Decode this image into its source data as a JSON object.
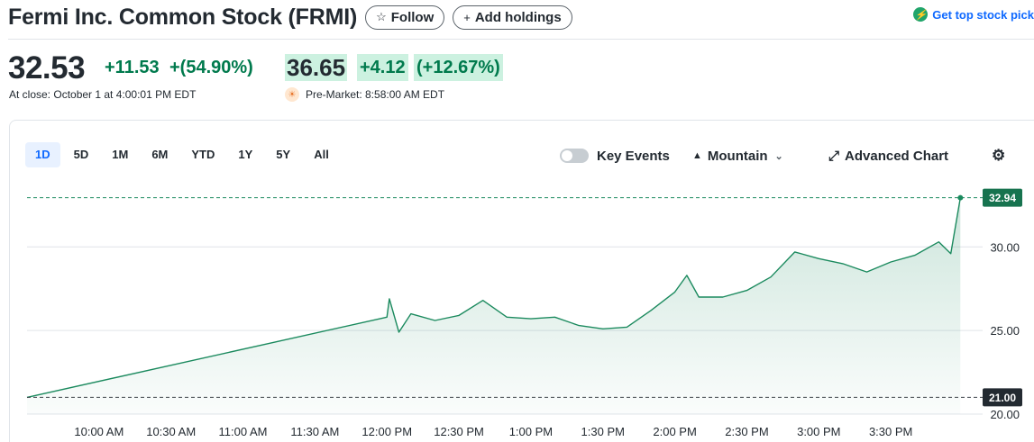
{
  "header": {
    "title": "Fermi Inc. Common Stock (FRMI)",
    "follow_label": "Follow",
    "add_holdings_label": "Add holdings",
    "top_link_label": "Get top stock pick"
  },
  "quote": {
    "price": "32.53",
    "change": "+11.53",
    "change_pct": "+(54.90%)",
    "close_note": "At close: October 1 at 4:00:01 PM EDT",
    "premarket_price": "36.65",
    "premarket_change": "+4.12",
    "premarket_change_pct": "(+12.67%)",
    "premarket_note": "Pre-Market: 8:58:00 AM EDT"
  },
  "chart_controls": {
    "ranges": [
      "1D",
      "5D",
      "1M",
      "6M",
      "YTD",
      "1Y",
      "5Y",
      "All"
    ],
    "active_range": "1D",
    "key_events_label": "Key Events",
    "key_events_on": false,
    "chart_type_label": "Mountain",
    "advanced_label": "Advanced Chart"
  },
  "colors": {
    "up": "#007a4d",
    "line": "#1b8a5e",
    "accent": "#0f69ff",
    "highlight_bg": "#ccf1e0"
  },
  "chart_data": {
    "type": "area",
    "x_ticks": [
      "10:00 AM",
      "10:30 AM",
      "11:00 AM",
      "11:30 AM",
      "12:00 PM",
      "12:30 PM",
      "1:00 PM",
      "1:30 PM",
      "2:00 PM",
      "2:30 PM",
      "3:00 PM",
      "3:30 PM"
    ],
    "y_ticks": [
      "20.00",
      "25.00",
      "30.00"
    ],
    "ylim": [
      20,
      34
    ],
    "grid": true,
    "current_label": "32.94",
    "prev_close_label": "21.00",
    "current_value": 32.94,
    "prev_close_value": 21.0,
    "series": [
      {
        "x": [
          "9:30",
          "12:00",
          "12:01",
          "12:05",
          "12:10",
          "12:20",
          "12:30",
          "12:40",
          "12:50",
          "13:00",
          "13:10",
          "13:20",
          "13:30",
          "13:40",
          "13:50",
          "14:00",
          "14:05",
          "14:10",
          "14:20",
          "14:30",
          "14:40",
          "14:50",
          "15:00",
          "15:10",
          "15:20",
          "15:30",
          "15:40",
          "15:50",
          "15:55",
          "15:59"
        ],
        "values": [
          21.0,
          25.8,
          26.9,
          24.9,
          26.0,
          25.6,
          25.9,
          26.8,
          25.8,
          25.7,
          25.8,
          25.3,
          25.1,
          25.2,
          26.2,
          27.3,
          28.3,
          27.0,
          27.0,
          27.4,
          28.2,
          29.7,
          29.3,
          29.0,
          28.5,
          29.1,
          29.5,
          30.3,
          29.6,
          32.94
        ]
      }
    ]
  }
}
